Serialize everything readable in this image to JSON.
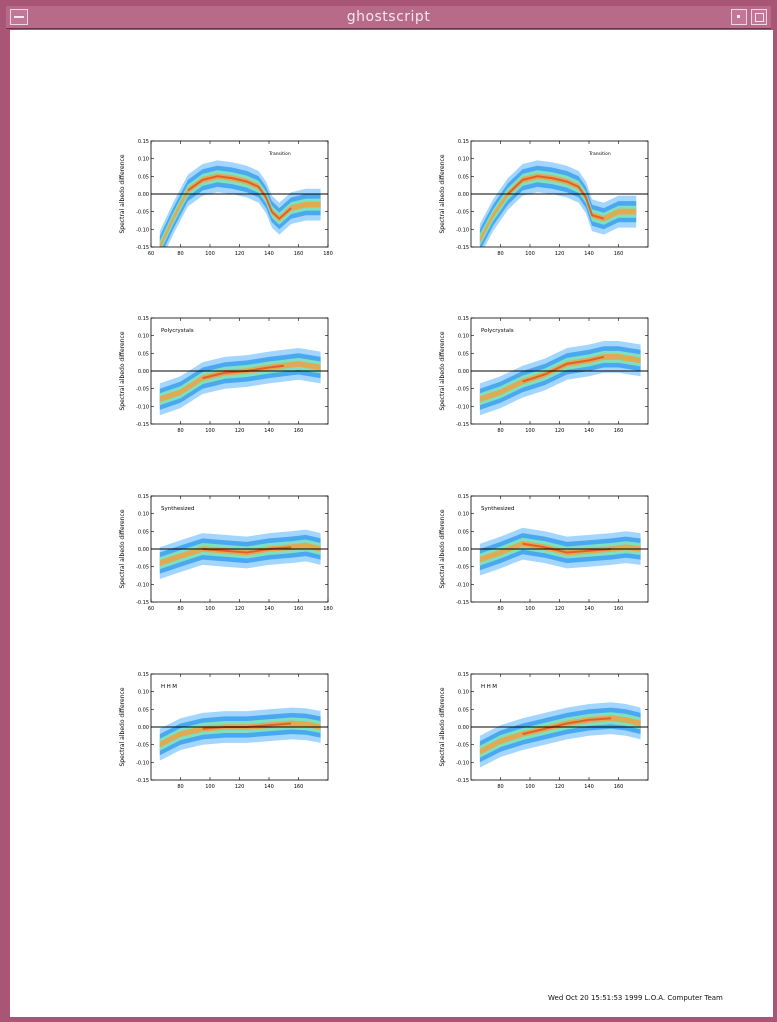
{
  "window": {
    "title": "ghostscript"
  },
  "footer": {
    "text": "Wed Oct 20 15:51:53 1999 L.O.A. Computer Team"
  },
  "colors": {
    "frame": "#a85576",
    "titlebar": "#b86a89",
    "plot_light": "#a3d6ff",
    "plot_mid": "#4aa8f0",
    "plot_core": "#7ee0c0",
    "plot_peak": "#f0a040",
    "plot_hot": "#e04020"
  },
  "chart_data": [
    {
      "type": "heatmap",
      "panel": "row1-left",
      "annotation": "Transition",
      "ylabel": "Spectral albedo difference",
      "xlim": [
        60,
        180
      ],
      "ylim": [
        -0.15,
        0.15
      ],
      "xticks": [
        "60",
        "80",
        "100",
        "120",
        "140",
        "160",
        "180"
      ],
      "yticks": [
        "0.15",
        "0.10",
        "0.05",
        "0.00",
        "-0.05",
        "-0.10",
        "-0.15"
      ],
      "zero_line": true,
      "ridge": [
        [
          66,
          -0.15
        ],
        [
          75,
          -0.07
        ],
        [
          85,
          0.01
        ],
        [
          95,
          0.04
        ],
        [
          105,
          0.05
        ],
        [
          115,
          0.045
        ],
        [
          125,
          0.035
        ],
        [
          133,
          0.02
        ],
        [
          138,
          -0.01
        ],
        [
          142,
          -0.05
        ],
        [
          147,
          -0.07
        ],
        [
          155,
          -0.04
        ],
        [
          165,
          -0.03
        ],
        [
          175,
          -0.03
        ]
      ]
    },
    {
      "type": "heatmap",
      "panel": "row1-right",
      "annotation": "Transition",
      "ylabel": "Spectral albedo difference",
      "xlim": [
        60,
        180
      ],
      "ylim": [
        -0.15,
        0.15
      ],
      "xticks": [
        "80",
        "100",
        "120",
        "140",
        "160"
      ],
      "yticks": [
        "0.15",
        "0.10",
        "0.05",
        "0.00",
        "-0.05",
        "-0.10",
        "-0.15"
      ],
      "zero_line": true,
      "ridge": [
        [
          66,
          -0.13
        ],
        [
          75,
          -0.06
        ],
        [
          85,
          0.0
        ],
        [
          95,
          0.04
        ],
        [
          105,
          0.05
        ],
        [
          115,
          0.045
        ],
        [
          125,
          0.035
        ],
        [
          133,
          0.02
        ],
        [
          138,
          -0.01
        ],
        [
          142,
          -0.06
        ],
        [
          150,
          -0.07
        ],
        [
          160,
          -0.05
        ],
        [
          172,
          -0.05
        ]
      ]
    },
    {
      "type": "heatmap",
      "panel": "row2-left",
      "annotation": "Polycrystals",
      "ylabel": "Spectral albedo difference",
      "xlim": [
        60,
        180
      ],
      "ylim": [
        -0.15,
        0.15
      ],
      "xticks": [
        "80",
        "100",
        "120",
        "140",
        "160"
      ],
      "yticks": [
        "0.15",
        "0.10",
        "0.05",
        "0.00",
        "-0.05",
        "-0.10",
        "-0.15"
      ],
      "zero_line": true,
      "ridge": [
        [
          66,
          -0.08
        ],
        [
          80,
          -0.06
        ],
        [
          95,
          -0.02
        ],
        [
          110,
          -0.005
        ],
        [
          125,
          0.0
        ],
        [
          140,
          0.01
        ],
        [
          150,
          0.015
        ],
        [
          160,
          0.02
        ],
        [
          175,
          0.01
        ]
      ]
    },
    {
      "type": "heatmap",
      "panel": "row2-right",
      "annotation": "Polycrystals",
      "ylabel": "Spectral albedo difference",
      "xlim": [
        60,
        180
      ],
      "ylim": [
        -0.15,
        0.15
      ],
      "xticks": [
        "80",
        "100",
        "120",
        "140",
        "160"
      ],
      "yticks": [
        "0.15",
        "0.10",
        "0.05",
        "0.00",
        "-0.05",
        "-0.10",
        "-0.15"
      ],
      "zero_line": true,
      "ridge": [
        [
          66,
          -0.08
        ],
        [
          80,
          -0.06
        ],
        [
          95,
          -0.03
        ],
        [
          110,
          -0.01
        ],
        [
          125,
          0.02
        ],
        [
          140,
          0.03
        ],
        [
          150,
          0.04
        ],
        [
          160,
          0.04
        ],
        [
          175,
          0.03
        ]
      ]
    },
    {
      "type": "heatmap",
      "panel": "row3-left",
      "annotation": "Synthesized",
      "ylabel": "Spectral albedo difference",
      "xlim": [
        60,
        180
      ],
      "ylim": [
        -0.15,
        0.15
      ],
      "xticks": [
        "60",
        "80",
        "100",
        "120",
        "140",
        "160",
        "180"
      ],
      "yticks": [
        "0.15",
        "0.10",
        "0.05",
        "0.00",
        "-0.05",
        "-0.10",
        "-0.15"
      ],
      "zero_line": true,
      "ridge": [
        [
          66,
          -0.04
        ],
        [
          80,
          -0.02
        ],
        [
          95,
          0.0
        ],
        [
          110,
          -0.005
        ],
        [
          125,
          -0.01
        ],
        [
          140,
          0.0
        ],
        [
          155,
          0.005
        ],
        [
          165,
          0.01
        ],
        [
          175,
          0.0
        ]
      ]
    },
    {
      "type": "heatmap",
      "panel": "row3-right",
      "annotation": "Synthesized",
      "ylabel": "Spectral albedo difference",
      "xlim": [
        60,
        180
      ],
      "ylim": [
        -0.15,
        0.15
      ],
      "xticks": [
        "80",
        "100",
        "120",
        "140",
        "160"
      ],
      "yticks": [
        "0.15",
        "0.10",
        "0.05",
        "0.00",
        "-0.05",
        "-0.10",
        "-0.15"
      ],
      "zero_line": true,
      "ridge": [
        [
          66,
          -0.03
        ],
        [
          80,
          -0.01
        ],
        [
          95,
          0.015
        ],
        [
          110,
          0.005
        ],
        [
          125,
          -0.01
        ],
        [
          140,
          -0.005
        ],
        [
          155,
          0.0
        ],
        [
          165,
          0.005
        ],
        [
          175,
          0.0
        ]
      ]
    },
    {
      "type": "heatmap",
      "panel": "row4-left",
      "annotation": "HHM",
      "ylabel": "Spectral albedo difference",
      "xlim": [
        60,
        180
      ],
      "ylim": [
        -0.15,
        0.15
      ],
      "xticks": [
        "80",
        "100",
        "120",
        "140",
        "160"
      ],
      "yticks": [
        "0.15",
        "0.10",
        "0.05",
        "0.00",
        "-0.05",
        "-0.10",
        "-0.15"
      ],
      "zero_line": true,
      "ridge": [
        [
          66,
          -0.05
        ],
        [
          80,
          -0.02
        ],
        [
          95,
          -0.005
        ],
        [
          110,
          0.0
        ],
        [
          125,
          0.0
        ],
        [
          140,
          0.005
        ],
        [
          155,
          0.01
        ],
        [
          165,
          0.008
        ],
        [
          175,
          0.0
        ]
      ]
    },
    {
      "type": "heatmap",
      "panel": "row4-right",
      "annotation": "HHM",
      "ylabel": "Spectral albedo difference",
      "xlim": [
        60,
        180
      ],
      "ylim": [
        -0.15,
        0.15
      ],
      "xticks": [
        "80",
        "100",
        "120",
        "140",
        "160"
      ],
      "yticks": [
        "0.15",
        "0.10",
        "0.05",
        "0.00",
        "-0.05",
        "-0.10",
        "-0.15"
      ],
      "zero_line": true,
      "ridge": [
        [
          66,
          -0.07
        ],
        [
          80,
          -0.04
        ],
        [
          95,
          -0.02
        ],
        [
          110,
          -0.005
        ],
        [
          125,
          0.01
        ],
        [
          140,
          0.02
        ],
        [
          155,
          0.025
        ],
        [
          165,
          0.02
        ],
        [
          175,
          0.01
        ]
      ]
    }
  ]
}
